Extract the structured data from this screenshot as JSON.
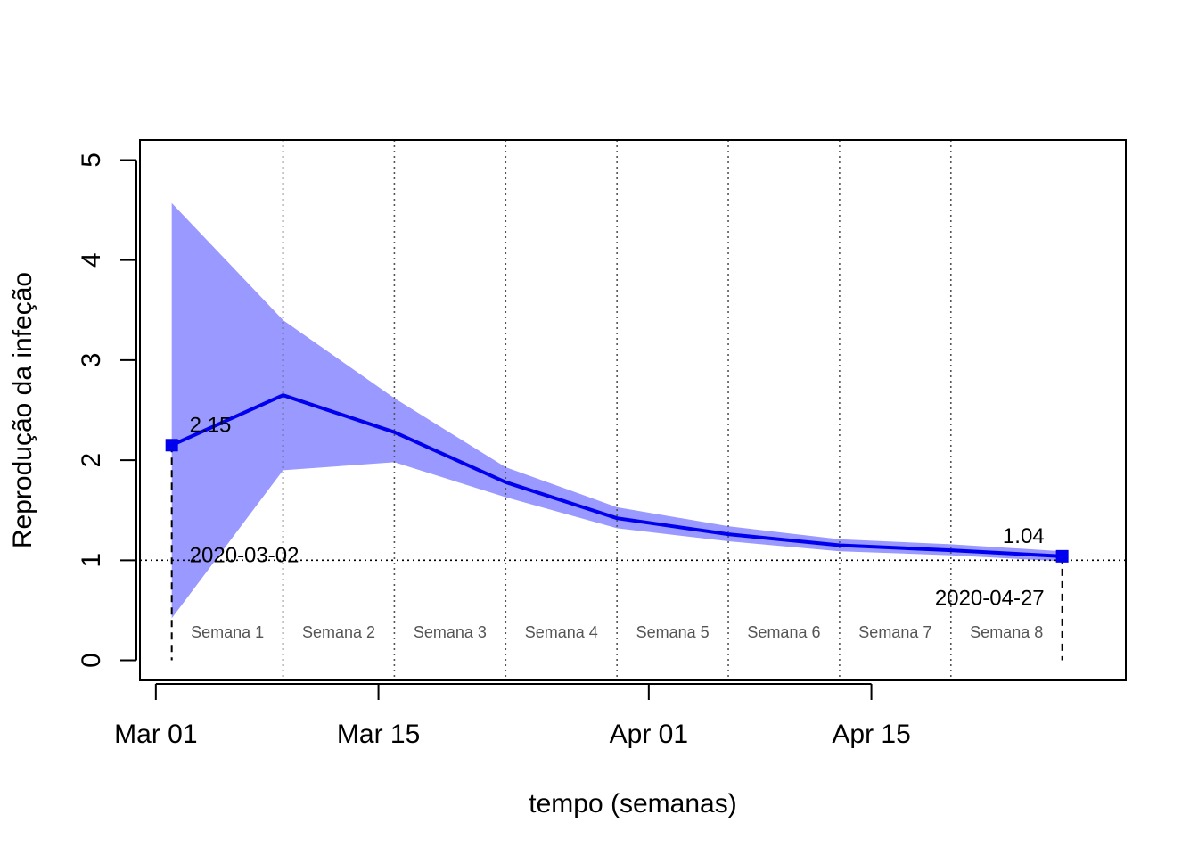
{
  "chart_data": {
    "type": "line",
    "title": "",
    "xlabel": "tempo (semanas)",
    "ylabel": "Reprodução da infeção",
    "x_range": [
      "2020-02-29",
      "2020-05-01"
    ],
    "ylim": [
      -0.2,
      5.2
    ],
    "x_ticks": [
      {
        "date": "2020-03-01",
        "label": "Mar 01"
      },
      {
        "date": "2020-03-15",
        "label": "Mar 15"
      },
      {
        "date": "2020-04-01",
        "label": "Apr 01"
      },
      {
        "date": "2020-04-15",
        "label": "Apr 15"
      }
    ],
    "y_ticks": [
      0,
      1,
      2,
      3,
      4,
      5
    ],
    "series": [
      {
        "color": "#0000ee",
        "band_color": "#9999ff",
        "points": [
          {
            "x": "2020-03-02",
            "y": 2.15,
            "lower": 0.42,
            "upper": 4.57
          },
          {
            "x": "2020-03-09",
            "y": 2.65,
            "lower": 1.9,
            "upper": 3.4
          },
          {
            "x": "2020-03-16",
            "y": 2.28,
            "lower": 1.98,
            "upper": 2.62
          },
          {
            "x": "2020-03-23",
            "y": 1.78,
            "lower": 1.63,
            "upper": 1.93
          },
          {
            "x": "2020-03-30",
            "y": 1.42,
            "lower": 1.32,
            "upper": 1.53
          },
          {
            "x": "2020-04-06",
            "y": 1.26,
            "lower": 1.19,
            "upper": 1.34
          },
          {
            "x": "2020-04-13",
            "y": 1.15,
            "lower": 1.09,
            "upper": 1.21
          },
          {
            "x": "2020-04-20",
            "y": 1.1,
            "lower": 1.05,
            "upper": 1.16
          },
          {
            "x": "2020-04-27",
            "y": 1.04,
            "lower": 0.99,
            "upper": 1.09
          }
        ]
      }
    ],
    "reference_line_y": 1,
    "week_dividers": [
      "2020-03-09",
      "2020-03-16",
      "2020-03-23",
      "2020-03-30",
      "2020-04-06",
      "2020-04-13",
      "2020-04-20"
    ],
    "week_labels": [
      {
        "label": "Semana 1",
        "start": "2020-03-02",
        "end": "2020-03-09"
      },
      {
        "label": "Semana 2",
        "start": "2020-03-09",
        "end": "2020-03-16"
      },
      {
        "label": "Semana 3",
        "start": "2020-03-16",
        "end": "2020-03-23"
      },
      {
        "label": "Semana 4",
        "start": "2020-03-23",
        "end": "2020-03-30"
      },
      {
        "label": "Semana 5",
        "start": "2020-03-30",
        "end": "2020-04-06"
      },
      {
        "label": "Semana 6",
        "start": "2020-04-06",
        "end": "2020-04-13"
      },
      {
        "label": "Semana 7",
        "start": "2020-04-13",
        "end": "2020-04-20"
      },
      {
        "label": "Semana 8",
        "start": "2020-04-20",
        "end": "2020-04-27"
      }
    ],
    "annotations": {
      "start_value": "2.15",
      "start_date": "2020-03-02",
      "end_value": "1.04",
      "end_date": "2020-04-27"
    },
    "week_label_y": 0.28,
    "grid": false,
    "legend": "none"
  }
}
